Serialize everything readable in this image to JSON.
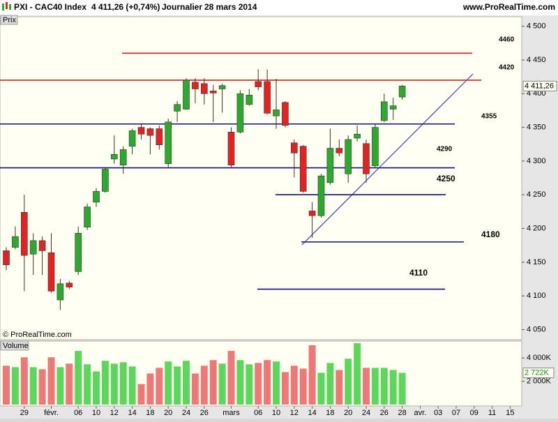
{
  "header": {
    "symbol": "PXI - CAC40 Index",
    "quote": "4 411,26 (+0,74%)",
    "period": "Journalier",
    "date": "28 mars 2014",
    "site": "www.ProRealTime.com"
  },
  "chart_data": [
    {
      "type": "candlestick",
      "panel_label": "Prix",
      "watermark": "© ProRealTime.com",
      "categories": [
        null,
        null,
        "29",
        null,
        null,
        "févr.",
        null,
        null,
        "06",
        null,
        "10",
        null,
        "12",
        null,
        "14",
        null,
        "18",
        null,
        "20",
        null,
        "24",
        null,
        "26",
        null,
        null,
        "mars",
        null,
        null,
        "06",
        null,
        "10",
        null,
        "12",
        null,
        "14",
        null,
        "18",
        null,
        "20",
        null,
        "24",
        null,
        "26",
        null,
        "28",
        null,
        "avr.",
        null,
        "03",
        null,
        "07",
        null,
        "09",
        null,
        "11",
        null,
        "15"
      ],
      "open": [
        4167,
        4172,
        4224,
        4162,
        4182,
        4164,
        4094,
        4119,
        4136,
        4202,
        4239,
        4255,
        4303,
        4294,
        4322,
        4350,
        4348,
        4348,
        4296,
        4374,
        4377,
        4417,
        4415,
        4404,
        4407,
        4343,
        4343,
        4384,
        4418,
        4418,
        4367,
        4387,
        4327,
        4322,
        4226,
        4219,
        4268,
        4319,
        4281,
        4334,
        4326,
        4293,
        4360,
        4377,
        4395,
        null,
        null,
        null,
        null,
        null,
        null,
        null,
        null,
        null,
        null,
        null,
        null
      ],
      "high": [
        4172,
        4203,
        4250,
        4193,
        4188,
        4193,
        4125,
        4122,
        4203,
        4237,
        4260,
        4291,
        4338,
        4322,
        4348,
        4355,
        4350,
        4353,
        4363,
        4389,
        4423,
        4423,
        4423,
        4413,
        4415,
        4350,
        4405,
        4407,
        4436,
        4436,
        4422,
        4389,
        4332,
        4324,
        4239,
        4281,
        4348,
        4332,
        4338,
        4353,
        4332,
        4355,
        4400,
        4394,
        4413,
        null,
        null,
        null,
        null,
        null,
        null,
        null,
        null,
        null,
        null,
        null,
        null
      ],
      "low": [
        4138,
        4169,
        4107,
        4131,
        4131,
        4105,
        4079,
        4110,
        4131,
        4198,
        4232,
        4253,
        4296,
        4281,
        4310,
        4332,
        4310,
        4317,
        4291,
        4358,
        4376,
        4386,
        4384,
        4358,
        4372,
        4291,
        4341,
        4382,
        4405,
        4369,
        4348,
        4350,
        4276,
        4253,
        4186,
        4216,
        4265,
        4307,
        4268,
        4329,
        4268,
        4291,
        4358,
        4361,
        4391,
        null,
        null,
        null,
        null,
        null,
        null,
        null,
        null,
        null,
        null,
        null,
        null
      ],
      "close": [
        4146,
        4188,
        4160,
        4182,
        4167,
        4107,
        4118,
        4113,
        4193,
        4232,
        4255,
        4288,
        4310,
        4317,
        4345,
        4340,
        4338,
        4324,
        4358,
        4384,
        4420,
        4407,
        4400,
        4401,
        4412,
        4294,
        4400,
        4398,
        4410,
        4371,
        4376,
        4353,
        4312,
        4255,
        4219,
        4278,
        4319,
        4312,
        4332,
        4340,
        4281,
        4350,
        4388,
        4382,
        4411.26,
        null,
        null,
        null,
        null,
        null,
        null,
        null,
        null,
        null,
        null,
        null,
        null
      ],
      "last_label": "4 411,26",
      "up_color": "#2ea82e",
      "down_color": "#e02424",
      "ylim": [
        4035,
        4511
      ],
      "yticks": [
        {
          "value": 4050,
          "label": "4 050"
        },
        {
          "value": 4100,
          "label": "4 100"
        },
        {
          "value": 4150,
          "label": "4 150"
        },
        {
          "value": 4200,
          "label": "4 200"
        },
        {
          "value": 4250,
          "label": "4 250"
        },
        {
          "value": 4300,
          "label": "4 300"
        },
        {
          "value": 4350,
          "label": "4 350"
        },
        {
          "value": 4400,
          "label": "4 400"
        },
        {
          "value": 4450,
          "label": "4 450"
        },
        {
          "value": 4500,
          "label": "4 500"
        }
      ],
      "levels": [
        4460,
        4420,
        4355,
        4290,
        4250,
        4180,
        4110
      ],
      "level_colors": [
        "#d81e1e",
        "#d81e1e",
        "#101080",
        "#101080",
        "#101080",
        "#101080",
        "#101080"
      ]
    },
    {
      "type": "bar",
      "panel_label": "Volume",
      "values": [
        3333,
        3212,
        4061,
        3212,
        3030,
        4061,
        3212,
        3515,
        4606,
        3455,
        2848,
        3758,
        3515,
        3636,
        3273,
        1758,
        2667,
        3152,
        3697,
        3273,
        3758,
        2667,
        3333,
        3818,
        3515,
        4606,
        3818,
        3455,
        3576,
        3818,
        3697,
        2788,
        3333,
        3091,
        5091,
        2727,
        3576,
        2970,
        3939,
        5273,
        3152,
        3152,
        3152,
        2970,
        2722,
        null,
        null,
        null,
        null,
        null,
        null,
        null,
        null,
        null,
        null,
        null,
        null
      ],
      "last_label": "2 722K",
      "up_color": "#5ed65e",
      "down_color": "#ec7878",
      "ylim": [
        0,
        5450
      ],
      "yticks": [
        {
          "value": 2000,
          "label": "2 000K"
        },
        {
          "value": 4000,
          "label": "4 000K"
        }
      ]
    }
  ]
}
